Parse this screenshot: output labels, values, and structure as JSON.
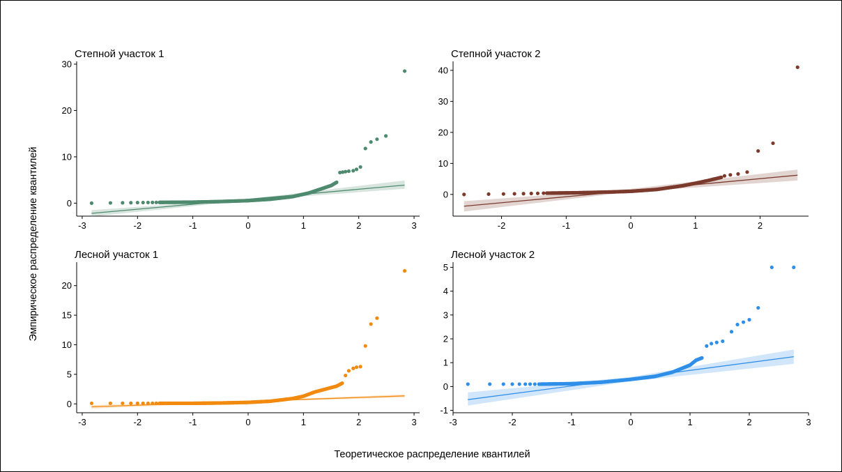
{
  "figure": {
    "xlabel": "Теоретическое распределение квантилей",
    "ylabel": "Эмпирическое распределение квантилей"
  },
  "chart_data": [
    {
      "type": "scatter",
      "title": "Степной участок 1",
      "color": "#4e8a6e",
      "xlim": [
        -3.1,
        3.1
      ],
      "ylim": [
        -2.8,
        30
      ],
      "xticks": [
        -3,
        -2,
        -1,
        0,
        1,
        2,
        3
      ],
      "yticks": [
        0,
        10,
        20,
        30
      ],
      "tail_low": [
        [
          -2.83,
          0.0
        ],
        [
          -2.49,
          0.05
        ],
        [
          -2.27,
          0.08
        ],
        [
          -2.12,
          0.1
        ],
        [
          -2.0,
          0.12
        ],
        [
          -1.9,
          0.13
        ],
        [
          -1.81,
          0.14
        ],
        [
          -1.73,
          0.15
        ],
        [
          -1.66,
          0.16
        ]
      ],
      "body": [
        [
          -1.6,
          0.17
        ],
        [
          -1.0,
          0.22
        ],
        [
          -0.5,
          0.35
        ],
        [
          0.0,
          0.55
        ],
        [
          0.4,
          0.85
        ],
        [
          0.8,
          1.4
        ],
        [
          1.1,
          2.2
        ],
        [
          1.3,
          3.0
        ],
        [
          1.5,
          3.8
        ],
        [
          1.6,
          4.5
        ]
      ],
      "tail_high": [
        [
          1.66,
          6.6
        ],
        [
          1.71,
          6.7
        ],
        [
          1.76,
          6.8
        ],
        [
          1.82,
          6.9
        ],
        [
          1.9,
          7.0
        ],
        [
          1.96,
          7.3
        ],
        [
          2.03,
          7.8
        ],
        [
          2.12,
          11.8
        ],
        [
          2.22,
          13.2
        ],
        [
          2.33,
          13.8
        ],
        [
          2.49,
          14.5
        ],
        [
          2.83,
          28.5
        ]
      ],
      "fit": [
        [
          -2.83,
          -2.2
        ],
        [
          2.83,
          3.9
        ]
      ],
      "band": [
        [
          -2.83,
          -1.5,
          -2.9
        ],
        [
          0.0,
          0.9,
          0.6
        ],
        [
          2.83,
          4.9,
          3.1
        ]
      ]
    },
    {
      "type": "scatter",
      "title": "Степной участок 2",
      "color": "#7b3a2c",
      "xlim": [
        -2.75,
        2.75
      ],
      "ylim": [
        -7,
        42
      ],
      "xticks": [
        -2,
        -1,
        0,
        1,
        2
      ],
      "yticks": [
        0,
        10,
        20,
        30,
        40
      ],
      "tail_low": [
        [
          -2.58,
          0.0
        ],
        [
          -2.2,
          0.1
        ],
        [
          -1.97,
          0.15
        ],
        [
          -1.8,
          0.2
        ],
        [
          -1.66,
          0.25
        ],
        [
          -1.54,
          0.3
        ],
        [
          -1.44,
          0.35
        ],
        [
          -1.35,
          0.4
        ]
      ],
      "body": [
        [
          -1.3,
          0.42
        ],
        [
          -0.8,
          0.55
        ],
        [
          -0.3,
          0.8
        ],
        [
          0.0,
          1.0
        ],
        [
          0.4,
          1.6
        ],
        [
          0.8,
          2.8
        ],
        [
          1.0,
          3.6
        ],
        [
          1.2,
          4.5
        ],
        [
          1.4,
          5.5
        ]
      ],
      "tail_high": [
        [
          1.45,
          6.0
        ],
        [
          1.54,
          6.3
        ],
        [
          1.66,
          6.6
        ],
        [
          1.8,
          7.2
        ],
        [
          1.97,
          14.0
        ],
        [
          2.2,
          16.5
        ],
        [
          2.58,
          41.0
        ]
      ],
      "fit": [
        [
          -2.58,
          -3.8
        ],
        [
          2.58,
          6.2
        ]
      ],
      "band": [
        [
          -2.58,
          -2.2,
          -5.5
        ],
        [
          0.0,
          1.8,
          0.8
        ],
        [
          2.58,
          8.0,
          4.5
        ]
      ]
    },
    {
      "type": "scatter",
      "title": "Лесной участок 1",
      "color": "#f28a10",
      "xlim": [
        -3.1,
        3.1
      ],
      "ylim": [
        -1.5,
        23.5
      ],
      "xticks": [
        -3,
        -2,
        -1,
        0,
        1,
        2,
        3
      ],
      "yticks": [
        0,
        5,
        10,
        15,
        20
      ],
      "tail_low": [
        [
          -2.83,
          0.1
        ],
        [
          -2.49,
          0.1
        ],
        [
          -2.27,
          0.1
        ],
        [
          -2.12,
          0.1
        ],
        [
          -2.0,
          0.1
        ],
        [
          -1.9,
          0.1
        ],
        [
          -1.81,
          0.1
        ],
        [
          -1.73,
          0.1
        ],
        [
          -1.66,
          0.1
        ]
      ],
      "body": [
        [
          -1.6,
          0.1
        ],
        [
          -1.0,
          0.1
        ],
        [
          -0.5,
          0.15
        ],
        [
          0.0,
          0.25
        ],
        [
          0.4,
          0.45
        ],
        [
          0.8,
          0.9
        ],
        [
          1.0,
          1.3
        ],
        [
          1.2,
          2.0
        ],
        [
          1.4,
          2.5
        ],
        [
          1.6,
          3.0
        ],
        [
          1.7,
          3.5
        ]
      ],
      "tail_high": [
        [
          1.76,
          4.8
        ],
        [
          1.82,
          5.6
        ],
        [
          1.9,
          6.0
        ],
        [
          1.96,
          6.2
        ],
        [
          2.03,
          6.3
        ],
        [
          2.12,
          9.8
        ],
        [
          2.22,
          13.5
        ],
        [
          2.33,
          14.5
        ],
        [
          2.83,
          22.5
        ]
      ],
      "fit": [
        [
          -2.83,
          -0.5
        ],
        [
          2.83,
          1.35
        ]
      ],
      "band": [
        [
          -2.83,
          -0.2,
          -0.8
        ],
        [
          0.0,
          0.55,
          0.35
        ],
        [
          2.83,
          1.6,
          1.1
        ]
      ]
    },
    {
      "type": "scatter",
      "title": "Лесной участок 2",
      "color": "#2f8fe8",
      "xlim": [
        -3.0,
        3.0
      ],
      "ylim": [
        -1.1,
        5.1
      ],
      "xticks": [
        -3,
        -2,
        -1,
        0,
        1,
        2,
        3
      ],
      "yticks": [
        -1,
        0,
        1,
        2,
        3,
        4,
        5
      ],
      "tail_low": [
        [
          -2.75,
          0.1
        ],
        [
          -2.38,
          0.1
        ],
        [
          -2.15,
          0.1
        ],
        [
          -2.0,
          0.1
        ],
        [
          -1.88,
          0.1
        ],
        [
          -1.78,
          0.1
        ],
        [
          -1.7,
          0.1
        ],
        [
          -1.62,
          0.1
        ]
      ],
      "body": [
        [
          -1.55,
          0.1
        ],
        [
          -1.0,
          0.12
        ],
        [
          -0.5,
          0.18
        ],
        [
          0.0,
          0.3
        ],
        [
          0.4,
          0.42
        ],
        [
          0.7,
          0.6
        ],
        [
          0.9,
          0.8
        ],
        [
          1.0,
          0.9
        ],
        [
          1.1,
          1.1
        ],
        [
          1.2,
          1.2
        ]
      ],
      "tail_high": [
        [
          1.28,
          1.7
        ],
        [
          1.36,
          1.8
        ],
        [
          1.45,
          1.85
        ],
        [
          1.55,
          1.9
        ],
        [
          1.7,
          2.3
        ],
        [
          1.8,
          2.6
        ],
        [
          1.9,
          2.7
        ],
        [
          2.0,
          2.8
        ],
        [
          2.15,
          3.3
        ],
        [
          2.38,
          5.0
        ],
        [
          2.75,
          5.0
        ]
      ],
      "fit": [
        [
          -2.75,
          -0.55
        ],
        [
          2.75,
          1.25
        ]
      ],
      "band": [
        [
          -2.75,
          -0.25,
          -0.8
        ],
        [
          0.0,
          0.4,
          0.22
        ],
        [
          2.75,
          1.55,
          0.95
        ]
      ]
    }
  ]
}
